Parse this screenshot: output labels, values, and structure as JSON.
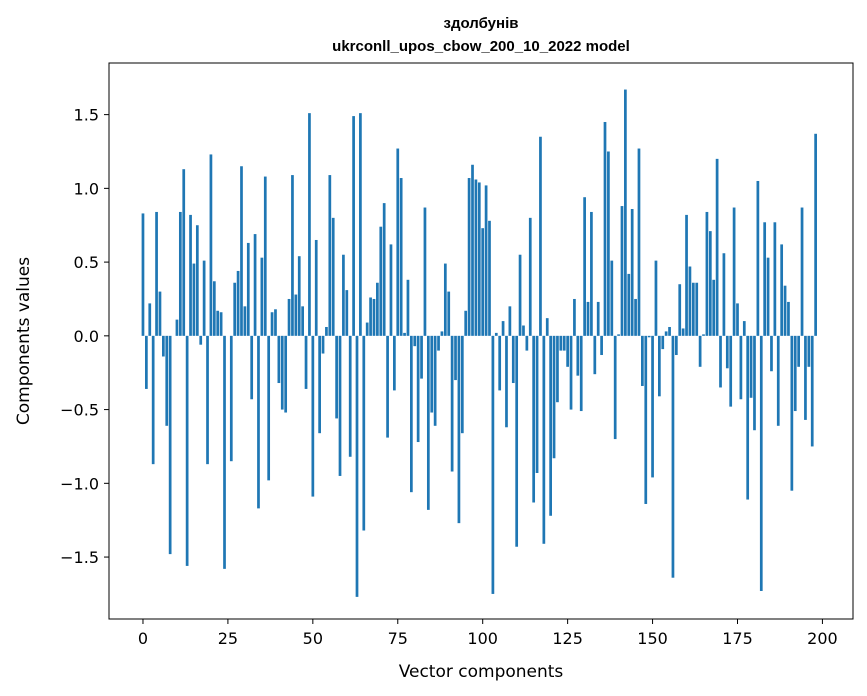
{
  "chart_data": {
    "type": "bar",
    "title": "здолбунів",
    "subtitle": "ukrconll_upos_cbow_200_10_2022 model",
    "xlabel": "Vector components",
    "ylabel": "Components values",
    "xlim": [
      -10,
      209
    ],
    "ylim": [
      -1.92,
      1.85
    ],
    "xticks": [
      0,
      25,
      50,
      75,
      100,
      125,
      150,
      175,
      200
    ],
    "xtick_labels": [
      "0",
      "25",
      "50",
      "75",
      "100",
      "125",
      "150",
      "175",
      "200"
    ],
    "yticks": [
      -1.5,
      -1.0,
      -0.5,
      0.0,
      0.5,
      1.0,
      1.5
    ],
    "ytick_labels": [
      "−1.5",
      "−1.0",
      "−0.5",
      "0.0",
      "0.5",
      "1.0",
      "1.5"
    ],
    "bar_color": "#1f77b4",
    "grid": false,
    "values": [
      0.83,
      -0.36,
      0.22,
      -0.87,
      0.84,
      0.3,
      -0.14,
      -0.61,
      -1.48,
      0.0,
      0.11,
      0.84,
      1.13,
      -1.56,
      0.82,
      0.49,
      0.75,
      -0.06,
      0.51,
      -0.87,
      1.23,
      0.37,
      0.17,
      0.16,
      -1.58,
      0.0,
      -0.85,
      0.36,
      0.44,
      1.15,
      0.2,
      0.63,
      -0.43,
      0.69,
      -1.17,
      0.53,
      1.08,
      -0.98,
      0.16,
      0.18,
      -0.32,
      -0.5,
      -0.52,
      0.25,
      1.09,
      0.28,
      0.54,
      0.2,
      -0.36,
      1.51,
      -1.09,
      0.65,
      -0.66,
      -0.12,
      0.06,
      1.09,
      0.8,
      -0.56,
      -0.95,
      0.55,
      0.31,
      -0.82,
      1.49,
      -1.77,
      1.51,
      -1.32,
      0.09,
      0.26,
      0.25,
      0.36,
      0.74,
      0.9,
      -0.69,
      0.62,
      -0.37,
      1.27,
      1.07,
      0.02,
      0.38,
      -1.06,
      -0.07,
      -0.72,
      -0.29,
      0.87,
      -1.18,
      -0.52,
      -0.61,
      -0.1,
      0.03,
      0.49,
      0.3,
      -0.92,
      -0.3,
      -1.27,
      -0.66,
      0.17,
      1.07,
      1.16,
      1.06,
      1.04,
      0.73,
      1.02,
      0.78,
      -1.75,
      0.02,
      -0.37,
      0.1,
      -0.62,
      0.2,
      -0.32,
      -1.43,
      0.55,
      0.07,
      -0.1,
      0.8,
      -1.13,
      -0.93,
      1.35,
      -1.41,
      0.12,
      -1.22,
      -0.83,
      -0.45,
      -0.1,
      -0.1,
      -0.21,
      -0.5,
      0.25,
      -0.27,
      -0.51,
      0.94,
      0.23,
      0.84,
      -0.26,
      0.23,
      -0.13,
      1.45,
      1.25,
      0.51,
      -0.7,
      0.01,
      0.88,
      1.67,
      0.42,
      0.86,
      0.25,
      1.27,
      -0.34,
      -1.14,
      -0.01,
      -0.96,
      0.51,
      -0.41,
      -0.09,
      0.03,
      0.06,
      -1.64,
      -0.13,
      0.35,
      0.05,
      0.82,
      0.47,
      0.36,
      0.36,
      -0.21,
      0.01,
      0.84,
      0.71,
      0.38,
      1.2,
      -0.35,
      0.56,
      -0.22,
      -0.48,
      0.87,
      0.22,
      -0.43,
      0.1,
      -1.11,
      -0.42,
      -0.64,
      1.05,
      -1.73,
      0.77,
      0.53,
      -0.24,
      0.77,
      -0.61,
      0.62,
      0.34,
      0.23,
      -1.05,
      -0.51,
      -0.21,
      0.87,
      -0.57,
      -0.21,
      -0.75,
      1.37
    ]
  }
}
